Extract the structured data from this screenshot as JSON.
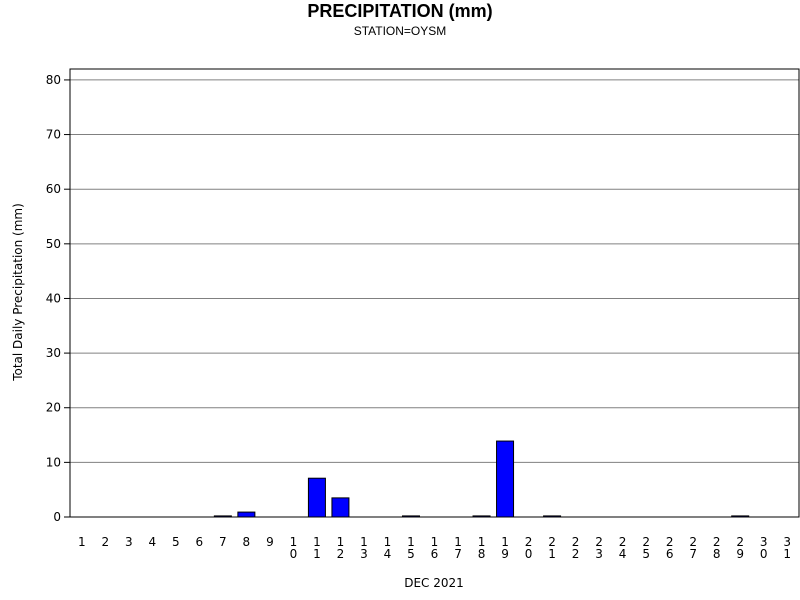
{
  "chart_data": {
    "type": "bar",
    "title": "PRECIPITATION (mm)",
    "subtitle": "STATION=OYSM",
    "xlabel": "DEC 2021",
    "ylabel": "Total Daily Precipitation (mm)",
    "ylim": [
      0,
      82
    ],
    "yticks": [
      0,
      10,
      20,
      30,
      40,
      50,
      60,
      70,
      80
    ],
    "grid": true,
    "bar_color": "#0000ff",
    "categories": [
      "1",
      "2",
      "3",
      "4",
      "5",
      "6",
      "7",
      "8",
      "9",
      "10",
      "11",
      "12",
      "13",
      "14",
      "15",
      "16",
      "17",
      "18",
      "19",
      "20",
      "21",
      "22",
      "23",
      "24",
      "25",
      "26",
      "27",
      "28",
      "29",
      "30",
      "31"
    ],
    "values": [
      null,
      null,
      null,
      null,
      null,
      null,
      0.2,
      0.9,
      null,
      null,
      7.1,
      3.5,
      null,
      null,
      0.2,
      null,
      null,
      0.2,
      13.9,
      null,
      0.2,
      null,
      null,
      null,
      null,
      null,
      null,
      null,
      0.2,
      null,
      null
    ]
  }
}
